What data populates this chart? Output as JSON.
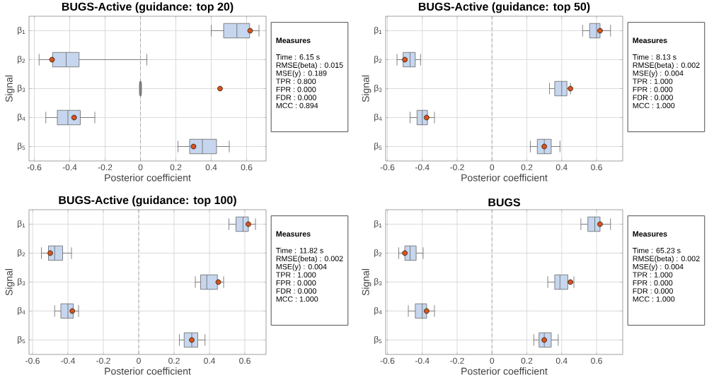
{
  "chart_data": [
    {
      "type": "box",
      "orientation": "horizontal",
      "title": "BUGS-Active (guidance: top 20)",
      "xlabel": "Posterior coefficient",
      "ylabel": "Signal",
      "categories": [
        "β$_{1}$",
        "β$_{2}$",
        "β$_{3}$",
        "β$_{4}$",
        "β$_{5}$"
      ],
      "xlim": [
        -0.63,
        0.71
      ],
      "xticks": [
        -0.6,
        -0.4,
        -0.2,
        0,
        0.2,
        0.4,
        0.6
      ],
      "grid": true,
      "ref_lines": [
        {
          "axis": "x",
          "value": 0,
          "color": "#999999",
          "line_style": "dashed"
        }
      ],
      "annotations": [
        "Measures",
        "Time  : 6.15 s",
        "RMSE(beta)  : 0.015",
        "MSE(y)  : 0.189",
        "TPR   : 0.800",
        "FPR   : 0.000",
        "FDR   : 0.000",
        "MCC   : 0.894"
      ],
      "series": [
        {
          "type": "box",
          "color": "#c6d6ee",
          "boxes": [
            {
              "low": 0.4,
              "q1": 0.47,
              "median": 0.545,
              "q3": 0.617,
              "high": 0.67
            },
            {
              "low": -0.573,
              "q1": -0.497,
              "median": -0.42,
              "q3": -0.347,
              "high": 0.036
            },
            {
              "low": -0.006,
              "q1": -0.004,
              "median": 0,
              "q3": 0.004,
              "high": 0.006
            },
            {
              "low": -0.535,
              "q1": -0.47,
              "median": -0.41,
              "q3": -0.34,
              "high": -0.258
            },
            {
              "low": 0.212,
              "q1": 0.278,
              "median": 0.35,
              "q3": 0.43,
              "high": 0.502
            }
          ]
        },
        {
          "type": "scatter",
          "color": "#d95319",
          "marker": "circle",
          "x": [
            "β$_{1}$",
            "β$_{2}$",
            "β$_{3}$",
            "β$_{4}$",
            "β$_{5}$"
          ],
          "values": [
            0.62,
            -0.5,
            0.45,
            -0.375,
            0.3
          ]
        }
      ]
    },
    {
      "type": "box",
      "orientation": "horizontal",
      "title": "BUGS-Active (guidance: top 50)",
      "xlabel": "Posterior coefficient",
      "ylabel": "Signal",
      "categories": [
        "β$_{1}$",
        "β$_{2}$",
        "β$_{3}$",
        "β$_{4}$",
        "β$_{5}$"
      ],
      "xlim": [
        -0.61,
        0.75
      ],
      "xticks": [
        -0.6,
        -0.4,
        -0.2,
        0,
        0.2,
        0.4,
        0.6
      ],
      "grid": true,
      "ref_lines": [
        {
          "axis": "x",
          "value": 0,
          "color": "#999999",
          "line_style": "dashed"
        }
      ],
      "annotations": [
        "Measures",
        "Time  : 8.13 s",
        "RMSE(beta)  : 0.002",
        "MSE(y)  : 0.004",
        "TPR   : 1.000",
        "FPR   : 0.000",
        "FDR   : 0.000",
        "MCC   : 1.000"
      ],
      "series": [
        {
          "type": "box",
          "color": "#c6d6ee",
          "boxes": [
            {
              "low": 0.52,
              "q1": 0.56,
              "median": 0.6,
              "q3": 0.62,
              "high": 0.68
            },
            {
              "low": -0.545,
              "q1": -0.51,
              "median": -0.47,
              "q3": -0.44,
              "high": -0.41
            },
            {
              "low": 0.33,
              "q1": 0.36,
              "median": 0.4,
              "q3": 0.43,
              "high": 0.45
            },
            {
              "low": -0.47,
              "q1": -0.43,
              "median": -0.4,
              "q3": -0.37,
              "high": -0.33
            },
            {
              "low": 0.22,
              "q1": 0.26,
              "median": 0.3,
              "q3": 0.34,
              "high": 0.39
            }
          ]
        },
        {
          "type": "scatter",
          "color": "#d95319",
          "marker": "circle",
          "x": [
            "β$_{1}$",
            "β$_{2}$",
            "β$_{3}$",
            "β$_{4}$",
            "β$_{5}$"
          ],
          "values": [
            0.62,
            -0.5,
            0.45,
            -0.375,
            0.3
          ]
        }
      ]
    },
    {
      "type": "box",
      "orientation": "horizontal",
      "title": "BUGS-Active (guidance: top 100)",
      "xlabel": "Posterior coefficient",
      "ylabel": "Signal",
      "categories": [
        "β$_{1}$",
        "β$_{2}$",
        "β$_{3}$",
        "β$_{4}$",
        "β$_{5}$"
      ],
      "xlim": [
        -0.62,
        0.72
      ],
      "xticks": [
        -0.6,
        -0.4,
        -0.2,
        0,
        0.2,
        0.4,
        0.6
      ],
      "grid": true,
      "ref_lines": [
        {
          "axis": "x",
          "value": 0,
          "color": "#999999",
          "line_style": "dashed"
        }
      ],
      "annotations": [
        "Measures",
        "Time  : 11.82 s",
        "RMSE(beta)  : 0.002",
        "MSE(y)  : 0.004",
        "TPR   : 1.000",
        "FPR   : 0.000",
        "FDR   : 0.000",
        "MCC   : 1.000"
      ],
      "series": [
        {
          "type": "box",
          "color": "#c6d6ee",
          "boxes": [
            {
              "low": 0.51,
              "q1": 0.55,
              "median": 0.59,
              "q3": 0.62,
              "high": 0.66
            },
            {
              "low": -0.55,
              "q1": -0.51,
              "median": -0.475,
              "q3": -0.43,
              "high": -0.38
            },
            {
              "low": 0.32,
              "q1": 0.35,
              "median": 0.385,
              "q3": 0.445,
              "high": 0.48
            },
            {
              "low": -0.475,
              "q1": -0.44,
              "median": -0.4,
              "q3": -0.37,
              "high": -0.34
            },
            {
              "low": 0.23,
              "q1": 0.257,
              "median": 0.3,
              "q3": 0.334,
              "high": 0.375
            }
          ]
        },
        {
          "type": "scatter",
          "color": "#d95319",
          "marker": "circle",
          "x": [
            "β$_{1}$",
            "β$_{2}$",
            "β$_{3}$",
            "β$_{4}$",
            "β$_{5}$"
          ],
          "values": [
            0.62,
            -0.5,
            0.45,
            -0.375,
            0.3
          ]
        }
      ]
    },
    {
      "type": "box",
      "orientation": "horizontal",
      "title": "BUGS",
      "xlabel": "Posterior coefficient",
      "ylabel": "Signal",
      "categories": [
        "β$_{1}$",
        "β$_{2}$",
        "β$_{3}$",
        "β$_{4}$",
        "β$_{5}$"
      ],
      "xlim": [
        -0.61,
        0.75
      ],
      "xticks": [
        -0.6,
        -0.4,
        -0.2,
        0,
        0.2,
        0.4,
        0.6
      ],
      "grid": true,
      "ref_lines": [
        {
          "axis": "x",
          "value": 0,
          "color": "#999999",
          "line_style": "dashed"
        }
      ],
      "annotations": [
        "Measures",
        "Time  : 65.23 s",
        "RMSE(beta)  : 0.002",
        "MSE(y)  : 0.004",
        "TPR   : 1.000",
        "FPR   : 0.000",
        "FDR   : 0.000",
        "MCC   : 1.000"
      ],
      "series": [
        {
          "type": "box",
          "color": "#c6d6ee",
          "boxes": [
            {
              "low": 0.51,
              "q1": 0.55,
              "median": 0.59,
              "q3": 0.62,
              "high": 0.68
            },
            {
              "low": -0.535,
              "q1": -0.5,
              "median": -0.47,
              "q3": -0.435,
              "high": -0.395
            },
            {
              "low": 0.32,
              "q1": 0.36,
              "median": 0.39,
              "q3": 0.435,
              "high": 0.47
            },
            {
              "low": -0.48,
              "q1": -0.44,
              "median": -0.4,
              "q3": -0.375,
              "high": -0.33
            },
            {
              "low": 0.24,
              "q1": 0.27,
              "median": 0.3,
              "q3": 0.34,
              "high": 0.38
            }
          ]
        },
        {
          "type": "scatter",
          "color": "#d95319",
          "marker": "circle",
          "x": [
            "β$_{1}$",
            "β$_{2}$",
            "β$_{3}$",
            "β$_{4}$",
            "β$_{5}$"
          ],
          "values": [
            0.62,
            -0.5,
            0.45,
            -0.375,
            0.3
          ]
        }
      ]
    }
  ]
}
